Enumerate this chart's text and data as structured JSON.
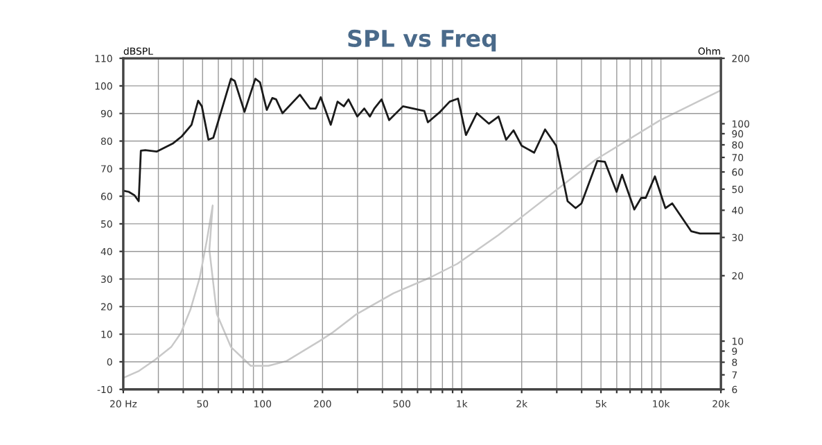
{
  "chart_data": {
    "type": "line",
    "title": "SPL vs Freq",
    "ylabel": "Ohm",
    "y2label": "dBSPL",
    "log": "xy",
    "grid": true,
    "marker": "none",
    "line_style": "solid",
    "xlim": [
      20,
      20000
    ],
    "xticks": [
      {
        "value": 20,
        "label": "20 Hz"
      },
      {
        "value": 30,
        "label": null
      },
      {
        "value": 40,
        "label": null
      },
      50,
      {
        "value": 60,
        "label": null
      },
      {
        "value": 70,
        "label": null
      },
      {
        "value": 80,
        "label": null
      },
      {
        "value": 90,
        "label": null
      },
      100,
      200,
      {
        "value": 300,
        "label": null
      },
      {
        "value": 400,
        "label": null
      },
      500,
      {
        "value": 600,
        "label": null
      },
      {
        "value": 700,
        "label": null
      },
      {
        "value": 800,
        "label": null
      },
      {
        "value": 900,
        "label": null
      },
      {
        "value": 1000,
        "label": "1k"
      },
      {
        "value": 2000,
        "label": "2k"
      },
      {
        "value": 3000,
        "label": null
      },
      {
        "value": 4000,
        "label": null
      },
      {
        "value": 5000,
        "label": "5k"
      },
      {
        "value": 6000,
        "label": null
      },
      {
        "value": 7000,
        "label": null
      },
      {
        "value": 8000,
        "label": null
      },
      {
        "value": 9000,
        "label": null
      },
      {
        "value": 10000,
        "label": "10k"
      },
      {
        "value": 20000,
        "label": "20k"
      }
    ],
    "ylim": [
      6,
      200
    ],
    "yticks": [
      6,
      7,
      8,
      9,
      10,
      20,
      30,
      40,
      50,
      60,
      70,
      80,
      90,
      100,
      200
    ],
    "y2lim": [
      -10,
      110
    ],
    "y2ticks": [
      -10,
      0,
      10,
      20,
      30,
      40,
      50,
      60,
      70,
      80,
      90,
      100,
      110
    ],
    "series": [
      {
        "color": "#1a1a1a",
        "axis": "y2",
        "x": [
          20,
          21.3,
          22.8,
          23.9,
          24.5,
          25.8,
          29.4,
          35.6,
          39.3,
          44,
          47.5,
          49.6,
          53.5,
          56.6,
          69.4,
          72.5,
          81.2,
          92,
          97.1,
          105,
          112,
          117,
          126,
          154,
          173,
          185,
          196,
          220,
          238,
          256,
          270,
          299,
          324,
          346,
          364,
          396,
          432,
          507,
          649,
          676,
          779,
          870,
          958,
          1050,
          1190,
          1370,
          1530,
          1670,
          1820,
          2000,
          2310,
          2620,
          2980,
          3400,
          3730,
          3990,
          4790,
          5230,
          5990,
          6380,
          7350,
          7960,
          8390,
          9330,
          10530,
          11400,
          14200,
          15700,
          19800
        ],
        "values": [
          62,
          61.6,
          60.3,
          58.2,
          76.5,
          76.7,
          76.2,
          79.2,
          81.7,
          85.9,
          94.6,
          92.6,
          80.5,
          81.2,
          102.6,
          101.8,
          90.6,
          102.6,
          101.3,
          91.3,
          95.6,
          95.1,
          90.1,
          96.8,
          91.8,
          91.8,
          95.9,
          85.9,
          94.3,
          92.6,
          95.1,
          88.9,
          91.8,
          88.9,
          91.8,
          95.1,
          87.6,
          92.6,
          90.9,
          86.8,
          90.6,
          94.3,
          95.4,
          82.2,
          90.1,
          86.3,
          88.9,
          80.5,
          83.9,
          78.3,
          75.8,
          84.2,
          78.3,
          58.2,
          55.7,
          57.4,
          72.8,
          72.5,
          61.6,
          67.8,
          55.2,
          59.4,
          59.4,
          67.2,
          55.7,
          57.4,
          47.3,
          46.5,
          46.5
        ]
      },
      {
        "color": "#c8c8c8",
        "x": [
          20.2,
          24,
          28.8,
          34.8,
          38.9,
          43.5,
          48.4,
          52.5,
          56.2,
          54.1,
          59,
          69.4,
          87.3,
          107,
          132,
          193,
          226,
          296,
          454,
          693,
          951,
          1530,
          4690,
          9850,
          19800
        ],
        "values": [
          6.8,
          7.3,
          8.2,
          9.4,
          10.9,
          14,
          19.6,
          29,
          42.1,
          26.3,
          13.3,
          9.4,
          7.7,
          7.7,
          8.1,
          10,
          11,
          13.3,
          16.6,
          19.6,
          22.7,
          30.8,
          68.3,
          103.5,
          142
        ]
      }
    ]
  }
}
